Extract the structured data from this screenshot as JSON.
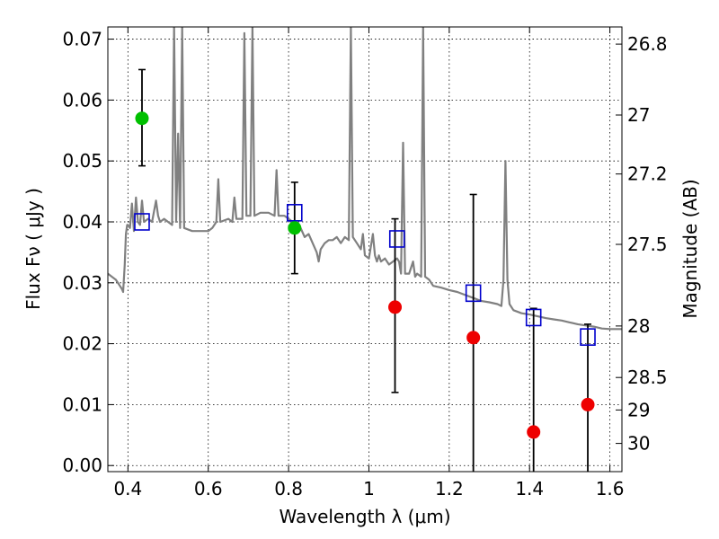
{
  "chart_data": {
    "type": "scatter",
    "xlabel": "Wavelength  λ (μm)",
    "ylabel": "Flux  Fν  ( μJy )",
    "ylabel_right": "Magnitude (AB)",
    "xlim": [
      0.35,
      1.63
    ],
    "ylim": [
      -0.001,
      0.072
    ],
    "x_ticks": [
      0.4,
      0.6,
      0.8,
      1.0,
      1.2,
      1.4,
      1.6
    ],
    "x_tick_labels": [
      "0.4",
      "0.6",
      "0.8",
      "1",
      "1.2",
      "1.4",
      "1.6"
    ],
    "y_ticks": [
      0.0,
      0.01,
      0.02,
      0.03,
      0.04,
      0.05,
      0.06,
      0.07
    ],
    "y_tick_labels": [
      "0.00",
      "0.01",
      "0.02",
      "0.03",
      "0.04",
      "0.05",
      "0.06",
      "0.07"
    ],
    "right_ticks": [
      {
        "label": "26.8",
        "mag": 26.8
      },
      {
        "label": "27",
        "mag": 27.0
      },
      {
        "label": "27.2",
        "mag": 27.2
      },
      {
        "label": "27.5",
        "mag": 27.5
      },
      {
        "label": "28",
        "mag": 28.0
      },
      {
        "label": "28.5",
        "mag": 28.5
      },
      {
        "label": "29",
        "mag": 29.0
      },
      {
        "label": "30",
        "mag": 30.0
      }
    ],
    "grid": true,
    "series": [
      {
        "kind": "sed-line",
        "color": "#808080",
        "points": [
          [
            0.35,
            0.0315
          ],
          [
            0.37,
            0.0305
          ],
          [
            0.38,
            0.0295
          ],
          [
            0.385,
            0.029
          ],
          [
            0.388,
            0.0285
          ],
          [
            0.392,
            0.033
          ],
          [
            0.395,
            0.038
          ],
          [
            0.398,
            0.0395
          ],
          [
            0.4,
            0.0395
          ],
          [
            0.405,
            0.039
          ],
          [
            0.41,
            0.043
          ],
          [
            0.415,
            0.0385
          ],
          [
            0.42,
            0.044
          ],
          [
            0.425,
            0.04
          ],
          [
            0.43,
            0.0395
          ],
          [
            0.435,
            0.0435
          ],
          [
            0.44,
            0.04
          ],
          [
            0.45,
            0.0405
          ],
          [
            0.46,
            0.04
          ],
          [
            0.47,
            0.0435
          ],
          [
            0.475,
            0.041
          ],
          [
            0.48,
            0.04
          ],
          [
            0.49,
            0.0405
          ],
          [
            0.5,
            0.04
          ],
          [
            0.51,
            0.0395
          ],
          [
            0.515,
            0.072
          ],
          [
            0.52,
            0.04
          ],
          [
            0.525,
            0.0545
          ],
          [
            0.53,
            0.039
          ],
          [
            0.535,
            0.072
          ],
          [
            0.54,
            0.039
          ],
          [
            0.56,
            0.0385
          ],
          [
            0.58,
            0.0385
          ],
          [
            0.6,
            0.0385
          ],
          [
            0.61,
            0.039
          ],
          [
            0.62,
            0.04
          ],
          [
            0.625,
            0.047
          ],
          [
            0.63,
            0.04
          ],
          [
            0.65,
            0.0405
          ],
          [
            0.66,
            0.04
          ],
          [
            0.665,
            0.044
          ],
          [
            0.67,
            0.0405
          ],
          [
            0.685,
            0.0405
          ],
          [
            0.69,
            0.071
          ],
          [
            0.695,
            0.041
          ],
          [
            0.705,
            0.041
          ],
          [
            0.71,
            0.072
          ],
          [
            0.715,
            0.041
          ],
          [
            0.73,
            0.0415
          ],
          [
            0.75,
            0.0415
          ],
          [
            0.765,
            0.041
          ],
          [
            0.77,
            0.0485
          ],
          [
            0.775,
            0.041
          ],
          [
            0.79,
            0.041
          ],
          [
            0.8,
            0.0405
          ],
          [
            0.81,
            0.04
          ],
          [
            0.82,
            0.039
          ],
          [
            0.83,
            0.039
          ],
          [
            0.84,
            0.0375
          ],
          [
            0.85,
            0.038
          ],
          [
            0.86,
            0.0365
          ],
          [
            0.87,
            0.035
          ],
          [
            0.875,
            0.0335
          ],
          [
            0.88,
            0.0355
          ],
          [
            0.89,
            0.0365
          ],
          [
            0.9,
            0.037
          ],
          [
            0.91,
            0.037
          ],
          [
            0.92,
            0.0375
          ],
          [
            0.93,
            0.0365
          ],
          [
            0.94,
            0.0375
          ],
          [
            0.95,
            0.037
          ],
          [
            0.955,
            0.072
          ],
          [
            0.96,
            0.0375
          ],
          [
            0.97,
            0.0365
          ],
          [
            0.98,
            0.0355
          ],
          [
            0.985,
            0.038
          ],
          [
            0.99,
            0.0345
          ],
          [
            1.0,
            0.034
          ],
          [
            1.01,
            0.038
          ],
          [
            1.015,
            0.0345
          ],
          [
            1.02,
            0.0335
          ],
          [
            1.025,
            0.0345
          ],
          [
            1.03,
            0.0335
          ],
          [
            1.04,
            0.034
          ],
          [
            1.05,
            0.033
          ],
          [
            1.06,
            0.0335
          ],
          [
            1.07,
            0.034
          ],
          [
            1.075,
            0.0335
          ],
          [
            1.08,
            0.0315
          ],
          [
            1.085,
            0.053
          ],
          [
            1.09,
            0.0315
          ],
          [
            1.1,
            0.0315
          ],
          [
            1.11,
            0.0335
          ],
          [
            1.115,
            0.031
          ],
          [
            1.12,
            0.0315
          ],
          [
            1.13,
            0.031
          ],
          [
            1.135,
            0.072
          ],
          [
            1.14,
            0.031
          ],
          [
            1.15,
            0.0305
          ],
          [
            1.16,
            0.0295
          ],
          [
            1.18,
            0.0292
          ],
          [
            1.2,
            0.0288
          ],
          [
            1.22,
            0.0285
          ],
          [
            1.24,
            0.028
          ],
          [
            1.26,
            0.0275
          ],
          [
            1.28,
            0.027
          ],
          [
            1.3,
            0.0268
          ],
          [
            1.32,
            0.0265
          ],
          [
            1.33,
            0.0262
          ],
          [
            1.335,
            0.0305
          ],
          [
            1.34,
            0.05
          ],
          [
            1.345,
            0.0305
          ],
          [
            1.35,
            0.0265
          ],
          [
            1.36,
            0.0255
          ],
          [
            1.38,
            0.025
          ],
          [
            1.4,
            0.0248
          ],
          [
            1.42,
            0.0245
          ],
          [
            1.44,
            0.0242
          ],
          [
            1.46,
            0.024
          ],
          [
            1.48,
            0.0238
          ],
          [
            1.5,
            0.0235
          ],
          [
            1.52,
            0.0232
          ],
          [
            1.54,
            0.023
          ],
          [
            1.56,
            0.0228
          ],
          [
            1.58,
            0.0225
          ],
          [
            1.6,
            0.0224
          ],
          [
            1.63,
            0.0224
          ]
        ]
      },
      {
        "kind": "model-box",
        "color": "#0000cc",
        "points": [
          [
            0.435,
            0.04
          ],
          [
            0.815,
            0.0415
          ],
          [
            1.07,
            0.0372
          ],
          [
            1.26,
            0.0283
          ],
          [
            1.41,
            0.0243
          ],
          [
            1.545,
            0.0211
          ]
        ]
      },
      {
        "kind": "detection",
        "color": "#00c000",
        "points": [
          {
            "x": 0.435,
            "y": 0.057,
            "lo": 0.0492,
            "hi": 0.065
          },
          {
            "x": 0.815,
            "y": 0.039,
            "lo": 0.0315,
            "hi": 0.0465
          }
        ]
      },
      {
        "kind": "non-detection",
        "color": "#ee0000",
        "points": [
          {
            "x": 1.065,
            "y": 0.026,
            "lo": 0.012,
            "hi": 0.0405
          },
          {
            "x": 1.26,
            "y": 0.021,
            "lo": -0.002,
            "hi": 0.0445
          },
          {
            "x": 1.41,
            "y": 0.0055,
            "lo": -0.002,
            "hi": 0.0258
          },
          {
            "x": 1.545,
            "y": 0.01,
            "lo": -0.002,
            "hi": 0.0232
          }
        ]
      }
    ]
  }
}
